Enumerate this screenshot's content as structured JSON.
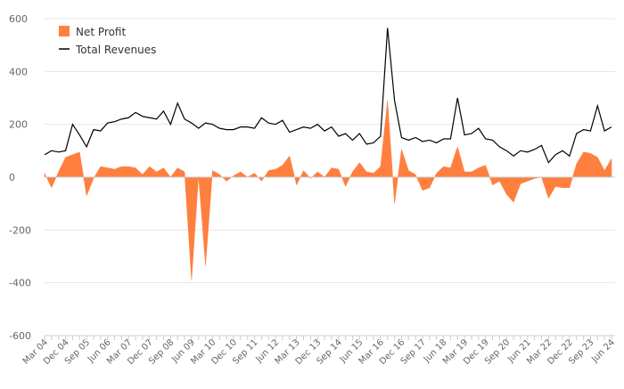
{
  "chart_data": {
    "type": "area",
    "title": "",
    "xlabel": "",
    "ylabel": "",
    "ylim": [
      -600,
      600
    ],
    "yticks": [
      -600,
      -400,
      -200,
      0,
      200,
      400,
      600
    ],
    "xtick_labels": [
      "Mar 04",
      "Dec 04",
      "Sep 05",
      "Jun 06",
      "Mar 07",
      "Dec 07",
      "Sep 08",
      "Jun 09",
      "Mar 10",
      "Dec 10",
      "Sep 11",
      "Jun 12",
      "Mar 13",
      "Dec 13",
      "Sep 14",
      "Jun 15",
      "Mar 16",
      "Dec 16",
      "Sep 17",
      "Jun 18",
      "Mar 19",
      "Dec 19",
      "Sep 20",
      "Jun 21",
      "Mar 22",
      "Dec 22",
      "Sep 23",
      "Jun 24"
    ],
    "legend_position": "top-left",
    "series": [
      {
        "name": "Net Profit",
        "style": "area",
        "color": "#ff7f3f",
        "values": [
          15,
          -40,
          20,
          75,
          85,
          95,
          -70,
          -5,
          40,
          35,
          30,
          40,
          40,
          35,
          10,
          40,
          20,
          35,
          0,
          35,
          20,
          -390,
          5,
          -335,
          25,
          10,
          -15,
          5,
          20,
          0,
          15,
          -15,
          25,
          30,
          45,
          80,
          -30,
          25,
          -5,
          20,
          0,
          35,
          30,
          -35,
          20,
          55,
          20,
          15,
          40,
          290,
          -100,
          105,
          25,
          10,
          -50,
          -40,
          15,
          40,
          35,
          115,
          20,
          20,
          35,
          45,
          -30,
          -15,
          -65,
          -95,
          -25,
          -15,
          -5,
          0,
          -80,
          -35,
          -40,
          -40,
          50,
          95,
          90,
          75,
          25,
          70
        ]
      },
      {
        "name": "Total Revenues",
        "style": "line",
        "color": "#000000",
        "values": [
          85,
          100,
          95,
          100,
          200,
          160,
          115,
          180,
          175,
          205,
          210,
          220,
          225,
          245,
          230,
          225,
          220,
          250,
          200,
          280,
          220,
          205,
          185,
          205,
          200,
          185,
          180,
          180,
          190,
          190,
          185,
          225,
          205,
          200,
          215,
          170,
          180,
          190,
          185,
          200,
          175,
          190,
          155,
          165,
          140,
          165,
          125,
          130,
          155,
          565,
          290,
          150,
          140,
          150,
          135,
          140,
          130,
          145,
          145,
          300,
          160,
          165,
          185,
          145,
          140,
          115,
          100,
          80,
          100,
          95,
          105,
          120,
          55,
          85,
          100,
          80,
          165,
          180,
          175,
          270,
          175,
          190
        ]
      }
    ]
  }
}
